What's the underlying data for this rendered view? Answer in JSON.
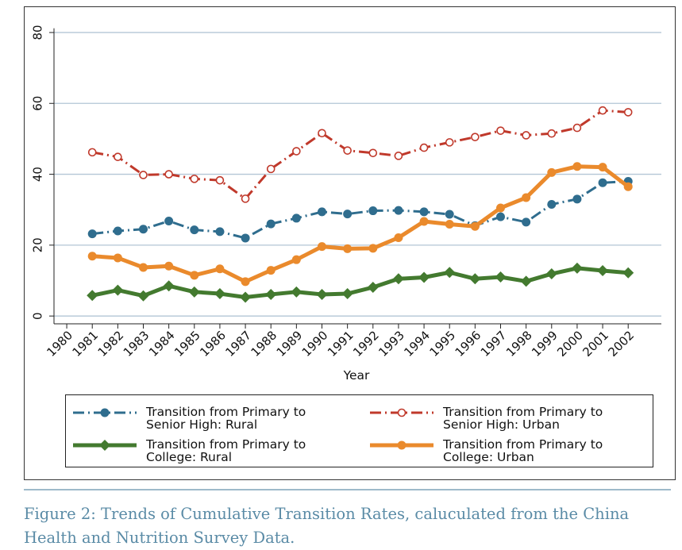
{
  "chart_data": {
    "type": "line",
    "x_label": "Year",
    "caption": "Figure 2: Trends of Cumulative Transition Rates, caluculated from the China Health and Nutrition Survey Data.",
    "x": [
      1981,
      1982,
      1983,
      1984,
      1985,
      1986,
      1987,
      1988,
      1989,
      1990,
      1991,
      1992,
      1993,
      1994,
      1995,
      1996,
      1997,
      1998,
      1999,
      2000,
      2001,
      2002
    ],
    "xlim": [
      1979.5,
      2003.3
    ],
    "xticks": [
      1980,
      1981,
      1982,
      1983,
      1984,
      1985,
      1986,
      1987,
      1988,
      1989,
      1990,
      1991,
      1992,
      1993,
      1994,
      1995,
      1996,
      1997,
      1998,
      1999,
      2000,
      2001,
      2002
    ],
    "ylim": [
      -2.2,
      81.2
    ],
    "yticks": [
      0,
      20,
      40,
      60,
      80
    ],
    "grid": true,
    "series": [
      {
        "name": "Transition from Primary to Senior High: Rural",
        "color": "#2f6d8e",
        "line_style": "dashdot",
        "marker": "circle",
        "values": [
          23.2,
          24,
          24.5,
          26.8,
          24.3,
          23.8,
          22,
          26,
          27.6,
          29.4,
          28.8,
          29.7,
          29.8,
          29.4,
          28.7,
          25.5,
          28,
          26.5,
          31.5,
          33,
          37.6,
          38
        ]
      },
      {
        "name": "Transition from Primary to Senior High: Urban",
        "color": "#c0392b",
        "line_style": "dashdot",
        "marker": "hollow-circle",
        "values": [
          46.2,
          44.9,
          39.8,
          40,
          38.7,
          38.3,
          33.1,
          41.5,
          46.5,
          51.6,
          46.7,
          46,
          45.2,
          47.5,
          49,
          50.5,
          52.3,
          51,
          51.5,
          53.1,
          58,
          57.5
        ]
      },
      {
        "name": "Transition from Primary to College: Rural",
        "color": "#437a2f",
        "line_style": "solid",
        "marker": "diamond",
        "values": [
          5.8,
          7.3,
          5.7,
          8.5,
          6.8,
          6.3,
          5.3,
          6.1,
          6.8,
          6.1,
          6.3,
          8.1,
          10.5,
          10.9,
          12.3,
          10.5,
          11,
          9.8,
          11.9,
          13.5,
          12.8,
          12.2
        ]
      },
      {
        "name": "Transition from Primary to College: Urban",
        "color": "#ea8a2c",
        "line_style": "solid",
        "marker": "circle",
        "values": [
          16.9,
          16.4,
          13.7,
          14.1,
          11.5,
          13.3,
          9.7,
          12.9,
          15.9,
          19.6,
          19,
          19.1,
          22.1,
          26.7,
          25.9,
          25.3,
          30.5,
          33.4,
          40.5,
          42.2,
          42,
          36.5
        ]
      }
    ]
  }
}
